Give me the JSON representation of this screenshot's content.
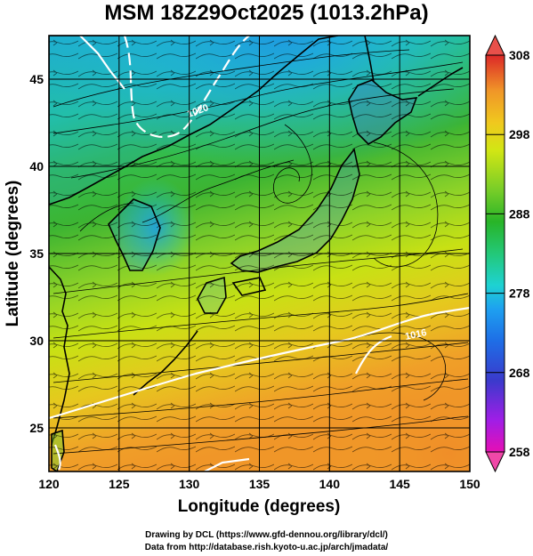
{
  "title": "MSM 18Z29Oct2025 (1013.2hPa)",
  "x_axis": {
    "label": "Longitude (degrees)",
    "range": [
      120,
      150
    ],
    "ticks": [
      120,
      125,
      130,
      135,
      140,
      145,
      150
    ]
  },
  "y_axis": {
    "label": "Latitude  (degrees)",
    "range": [
      22.5,
      47.5
    ],
    "ticks": [
      25,
      30,
      35,
      40,
      45
    ]
  },
  "colorbar": {
    "range": [
      258,
      308
    ],
    "ticks": [
      258,
      268,
      278,
      288,
      298,
      308
    ],
    "colors": [
      "#e60fb4",
      "#a01ee6",
      "#3a3acc",
      "#1e6ee6",
      "#1ea0f0",
      "#1ed2d2",
      "#23c878",
      "#28b428",
      "#78cd28",
      "#d2e614",
      "#f0c81e",
      "#f09628",
      "#e6502d",
      "#dc2828"
    ],
    "triangle_colors": {
      "top": "#e8504a",
      "bottom": "#f048a8"
    }
  },
  "contour": {
    "labels": [
      "1020",
      "1016"
    ],
    "color": "#ffffff"
  },
  "grid": true,
  "credits": {
    "line1": "Drawing by DCL (https://www.gfd-dennou.org/library/dcl/)",
    "line2": "Data from http://database.rish.kyoto-u.ac.jp/arch/jmadata/"
  }
}
